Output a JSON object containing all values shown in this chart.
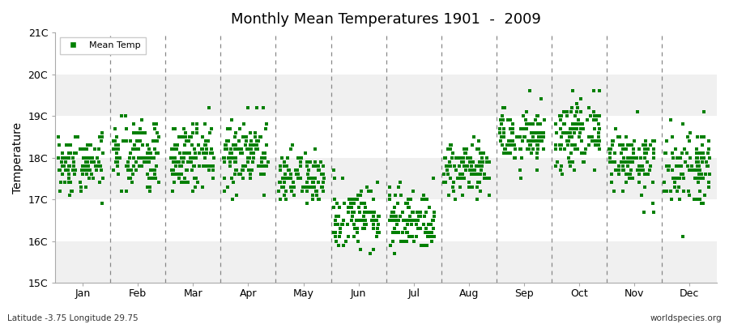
{
  "title": "Monthly Mean Temperatures 1901  -  2009",
  "ylabel": "Temperature",
  "bottom_left": "Latitude -3.75 Longitude 29.75",
  "bottom_right": "worldspecies.org",
  "legend_label": "Mean Temp",
  "ylim": [
    15,
    21
  ],
  "yticks": [
    15,
    16,
    17,
    18,
    19,
    20,
    21
  ],
  "ytick_labels": [
    "15C",
    "16C",
    "17C",
    "18C",
    "19C",
    "20C",
    "21C"
  ],
  "months": [
    "Jan",
    "Feb",
    "Mar",
    "Apr",
    "May",
    "Jun",
    "Jul",
    "Aug",
    "Sep",
    "Oct",
    "Nov",
    "Dec"
  ],
  "dot_color": "#008000",
  "background_color": "#ffffff",
  "band_light": "#f0f0f0",
  "band_dark": "#e0e0e0",
  "monthly_means": [
    17.9,
    18.0,
    18.05,
    18.1,
    17.45,
    16.55,
    16.5,
    17.75,
    18.5,
    18.55,
    17.95,
    17.8
  ],
  "monthly_stds": [
    0.38,
    0.42,
    0.38,
    0.42,
    0.32,
    0.38,
    0.38,
    0.33,
    0.33,
    0.38,
    0.42,
    0.48
  ],
  "n_years": 109,
  "seed": 42
}
